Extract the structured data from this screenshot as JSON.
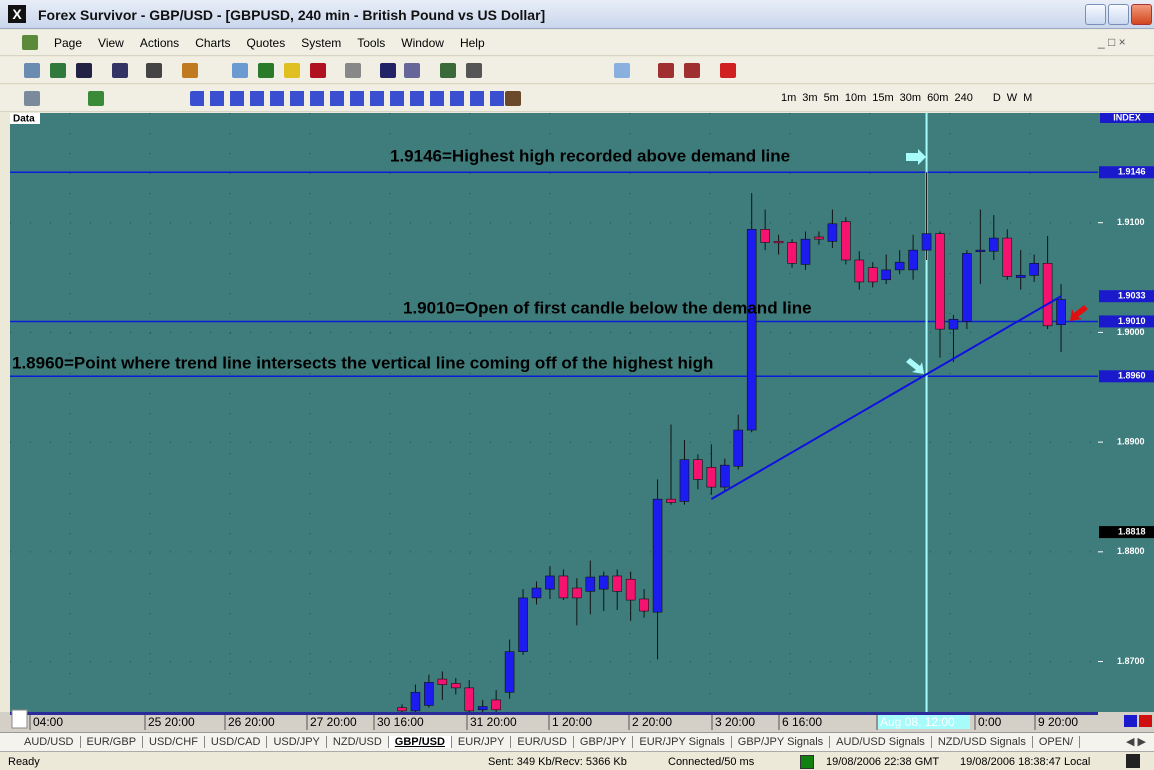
{
  "window": {
    "title": "Forex Survivor - GBP/USD - [GBPUSD, 240 min - British Pound vs US Dollar]"
  },
  "menu": [
    "Page",
    "View",
    "Actions",
    "Charts",
    "Quotes",
    "System",
    "Tools",
    "Window",
    "Help"
  ],
  "timeframes": [
    "1m",
    "3m",
    "5m",
    "10m",
    "15m",
    "30m",
    "60m",
    "240",
    "D",
    "W",
    "M"
  ],
  "chart_data": {
    "type": "candlestick",
    "panel_label": "Data",
    "axis_label": "INDEX",
    "ylim": [
      1.8654,
      1.92
    ],
    "yticks": [
      {
        "value": 1.91,
        "label": "1.9100"
      },
      {
        "value": 1.9,
        "label": "1.9000"
      },
      {
        "value": 1.89,
        "label": "1.8900"
      },
      {
        "value": 1.88,
        "label": "1.8800"
      },
      {
        "value": 1.87,
        "label": "1.8700"
      }
    ],
    "grid": true,
    "background": "#3f7d7d",
    "up_color": "#1c1cf0",
    "down_color": "#f5136f",
    "x_labels": [
      "04:00",
      "25 20:00",
      "26 20:00",
      "27 20:00",
      "30 16:00",
      "31 20:00",
      "1 20:00",
      "2 20:00",
      "3 20:00",
      "6 16:00",
      "Aug 08, 12:00",
      "0:00",
      "9 20:00"
    ],
    "open": [
      1.8658,
      1.8655,
      1.866,
      1.8684,
      1.868,
      1.8676,
      1.8656,
      1.8665,
      1.8672,
      1.8709,
      1.8758,
      1.8766,
      1.8778,
      1.8767,
      1.8764,
      1.8766,
      1.8778,
      1.8775,
      1.8757,
      1.8745,
      1.8848,
      1.8846,
      1.8884,
      1.8877,
      1.8859,
      1.8878,
      1.8911,
      1.9094,
      1.9083,
      1.9082,
      1.9062,
      1.9087,
      1.9083,
      1.9101,
      1.9066,
      1.9059,
      1.9048,
      1.9057,
      1.9057,
      1.9075,
      1.909,
      1.9003,
      1.901,
      1.9074,
      1.9074,
      1.9086,
      1.905,
      1.9052,
      1.9063,
      1.9007
    ],
    "high": [
      1.8661,
      1.8679,
      1.8688,
      1.8691,
      1.8685,
      1.8683,
      1.8665,
      1.8674,
      1.872,
      1.8766,
      1.8773,
      1.8787,
      1.8784,
      1.8776,
      1.8792,
      1.8782,
      1.8784,
      1.8782,
      1.8766,
      1.8866,
      1.8916,
      1.8902,
      1.8889,
      1.8898,
      1.8885,
      1.8925,
      1.9127,
      1.9112,
      1.9089,
      1.9085,
      1.9092,
      1.9092,
      1.9112,
      1.9105,
      1.9074,
      1.9064,
      1.9071,
      1.9075,
      1.9089,
      1.9146,
      1.9092,
      1.9016,
      1.9075,
      1.9112,
      1.9107,
      1.9094,
      1.9075,
      1.9071,
      1.9088,
      1.9044
    ],
    "low": [
      1.865,
      1.865,
      1.8658,
      1.8665,
      1.867,
      1.8652,
      1.8652,
      1.865,
      1.8666,
      1.8706,
      1.8752,
      1.8757,
      1.8756,
      1.8733,
      1.8743,
      1.8746,
      1.8747,
      1.8737,
      1.874,
      1.8702,
      1.8843,
      1.8843,
      1.8857,
      1.8852,
      1.8855,
      1.8875,
      1.8909,
      1.9075,
      1.9071,
      1.9059,
      1.9057,
      1.908,
      1.9077,
      1.9062,
      1.9039,
      1.9041,
      1.9044,
      1.9053,
      1.9048,
      1.9066,
      1.8977,
      1.8973,
      1.9003,
      1.9044,
      1.9066,
      1.9048,
      1.9039,
      1.9046,
      1.9003,
      1.8982
    ],
    "close": [
      1.8655,
      1.8672,
      1.8681,
      1.8679,
      1.8676,
      1.8655,
      1.8659,
      1.8656,
      1.8709,
      1.8758,
      1.8767,
      1.8778,
      1.8758,
      1.8758,
      1.8777,
      1.8778,
      1.8764,
      1.8756,
      1.8746,
      1.8848,
      1.8845,
      1.8884,
      1.8866,
      1.8859,
      1.8879,
      1.8911,
      1.9094,
      1.9082,
      1.9082,
      1.9063,
      1.9085,
      1.9085,
      1.9099,
      1.9066,
      1.9046,
      1.9046,
      1.9057,
      1.9064,
      1.9075,
      1.909,
      1.9003,
      1.9012,
      1.9072,
      1.9075,
      1.9086,
      1.9051,
      1.9052,
      1.9063,
      1.9006,
      1.903
    ],
    "horizontal_lines": [
      1.9146,
      1.901,
      1.896
    ],
    "line_color": "#0b1fd6",
    "vertical_line_index": 39,
    "vertical_line_color": "#a8fbfb",
    "trend_line": {
      "from": {
        "index": 23,
        "price": 1.8848
      },
      "to": {
        "index": 49,
        "price": 1.9033
      }
    },
    "price_tags": [
      {
        "value": 1.9146,
        "label": "1.9146",
        "color": "#1a1acc"
      },
      {
        "value": 1.9033,
        "label": "1.9033",
        "color": "#1a1acc"
      },
      {
        "value": 1.901,
        "label": "1.9010",
        "color": "#1a1acc"
      },
      {
        "value": 1.896,
        "label": "1.8960",
        "color": "#1a1acc"
      },
      {
        "value": 1.8818,
        "label": "1.8818",
        "color": "#000000"
      }
    ],
    "annotations": [
      "1.9146=Highest high recorded above demand line",
      "1.9010=Open of first candle below the demand line",
      "1.8960=Point where trend line intersects the vertical line coming off of the highest high"
    ]
  },
  "tabs": [
    "AUD/USD",
    "EUR/GBP",
    "USD/CHF",
    "USD/CAD",
    "USD/JPY",
    "NZD/USD",
    "GBP/USD",
    "EUR/JPY",
    "EUR/USD",
    "GBP/JPY",
    "EUR/JPY Signals",
    "GBP/JPY Signals",
    "AUD/USD Signals",
    "NZD/USD Signals",
    "OPEN/"
  ],
  "active_tab": 6,
  "status": {
    "left": "Ready",
    "traffic": "Sent: 349 Kb/Recv: 5366 Kb",
    "connection": "Connected/50 ms",
    "gmt": "19/08/2006 22:38 GMT",
    "local": "19/08/2006 18:38:47 Local"
  }
}
